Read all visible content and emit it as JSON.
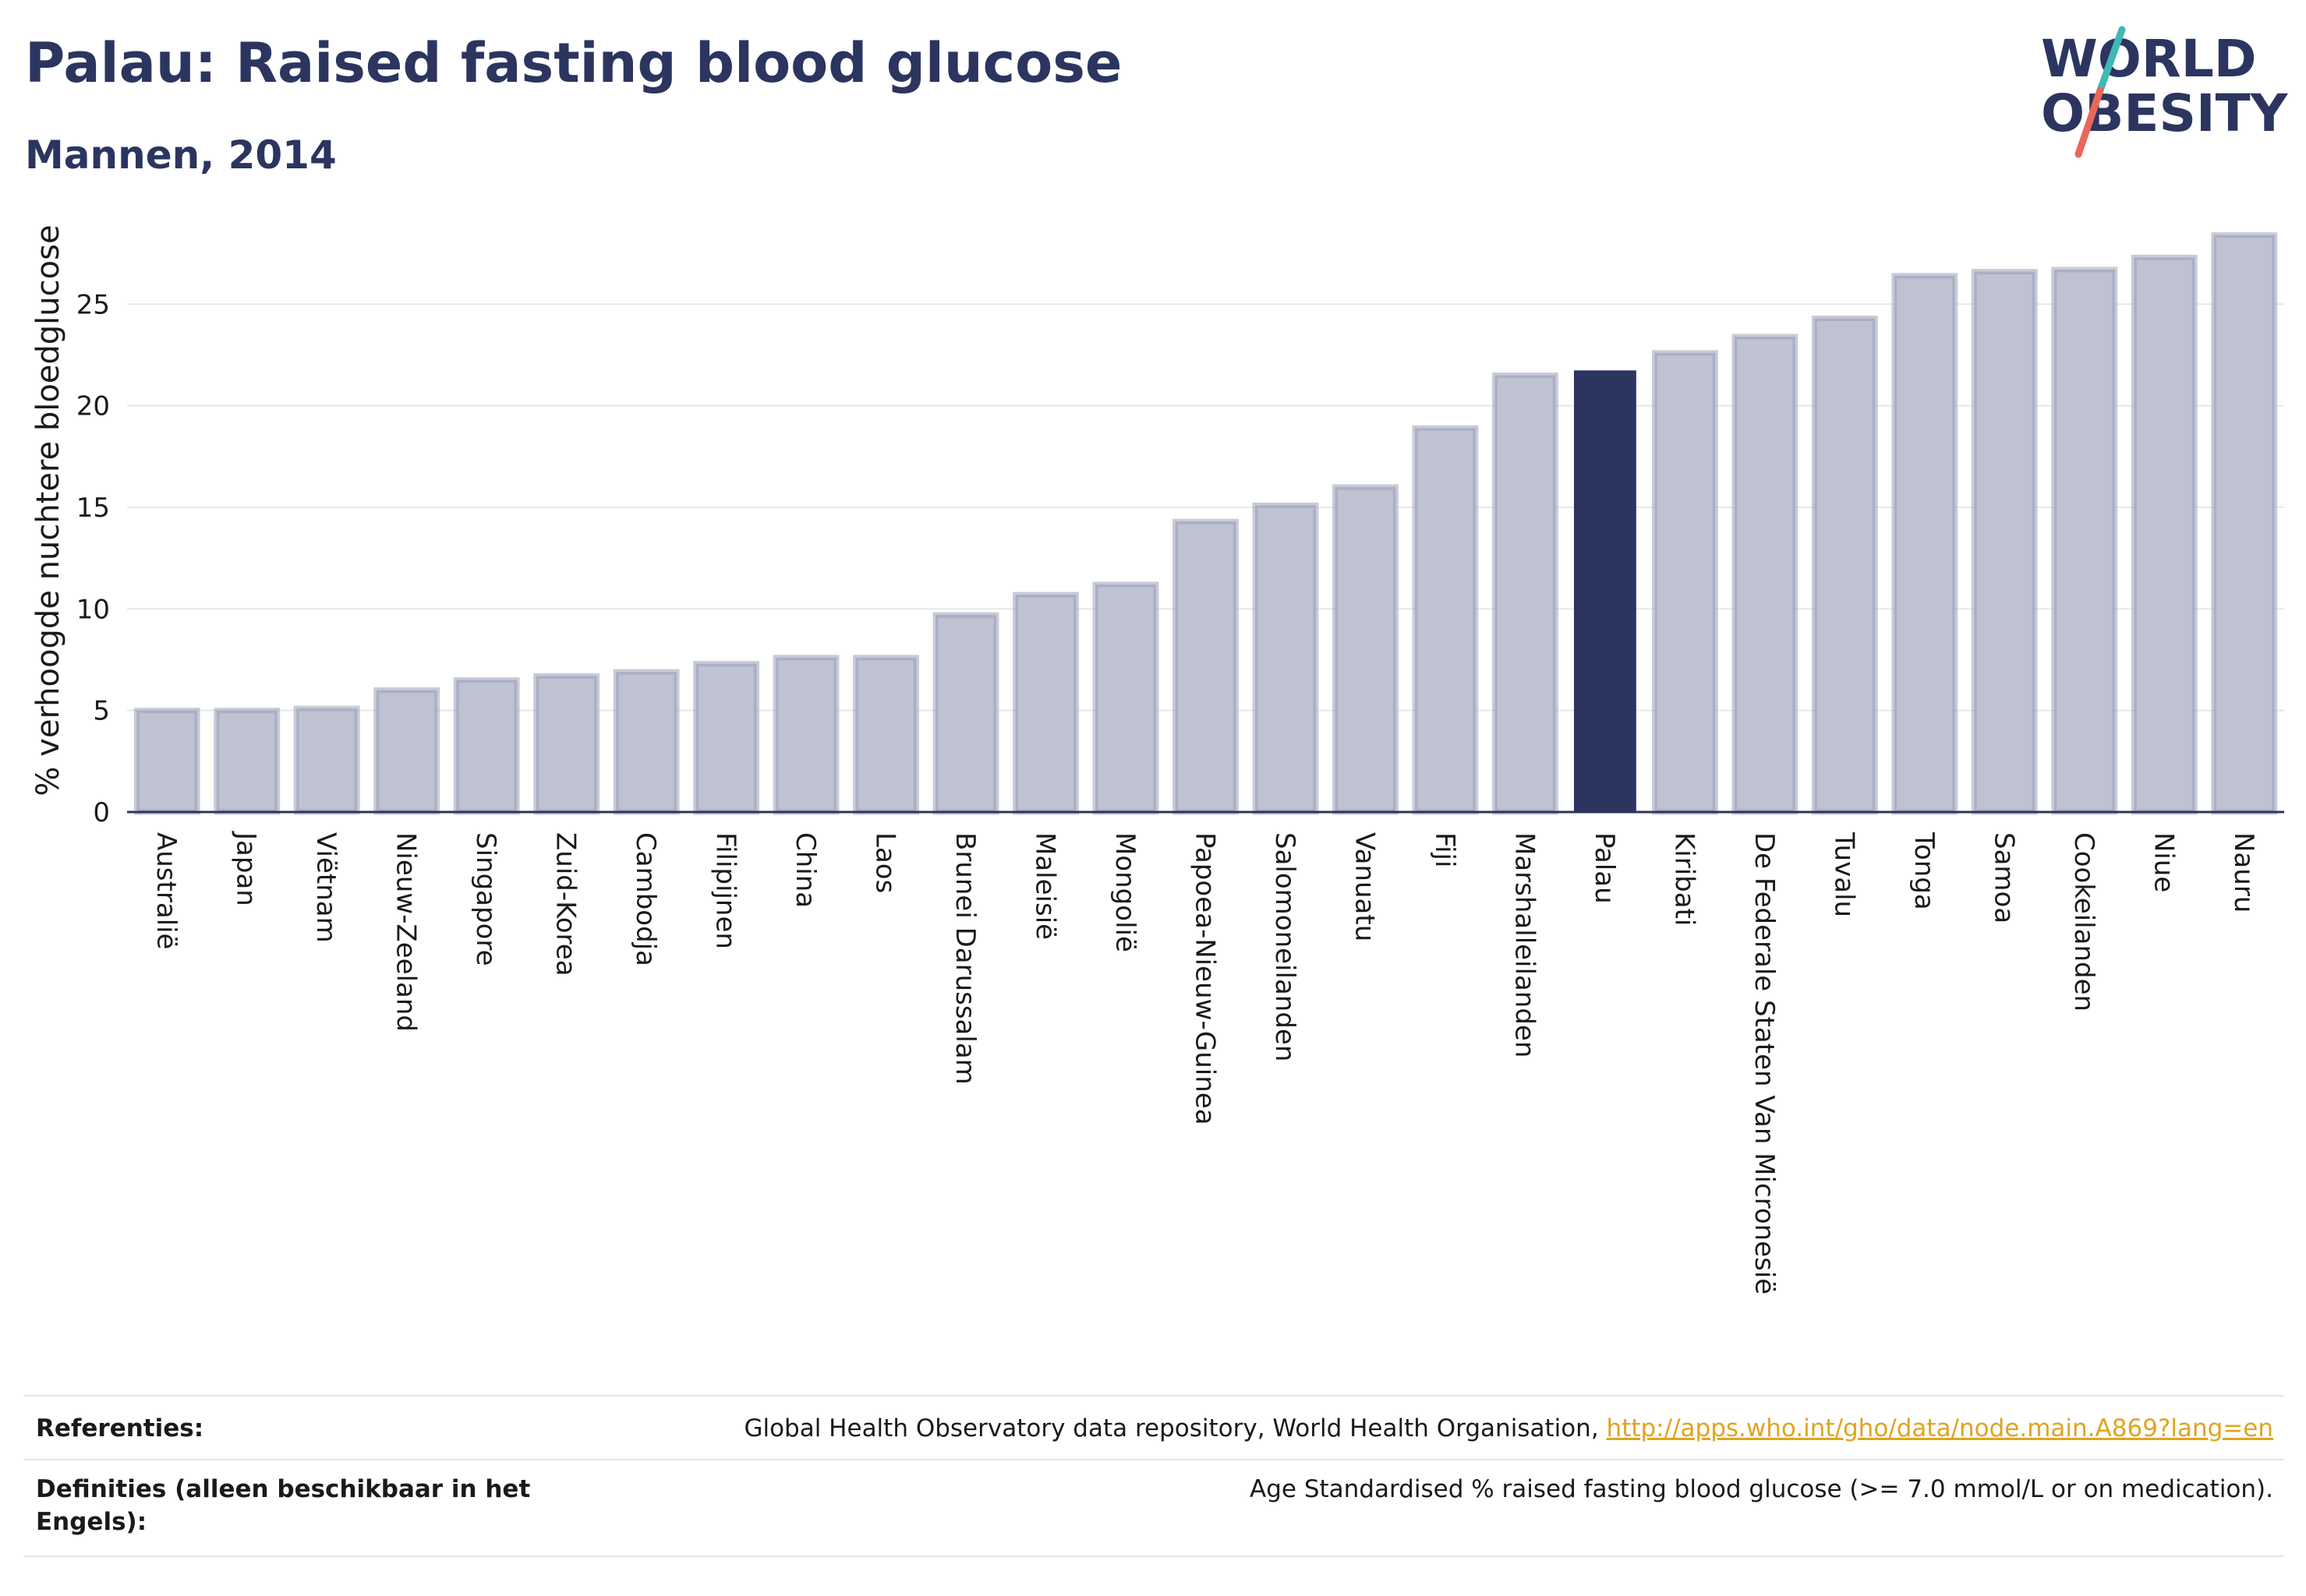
{
  "header": {
    "title": "Palau: Raised fasting blood glucose",
    "subtitle": "Mannen, 2014"
  },
  "logo": {
    "line1": "WORLD",
    "line2": "OBESITY",
    "colors": {
      "text": "#2b3560",
      "slash_top": "#3fb8b8",
      "slash_bottom": "#e8685a"
    }
  },
  "chart_data": {
    "type": "bar",
    "ylabel": "% verhoogde nuchtere bloedglucose",
    "xlabel": "",
    "ylim": [
      0,
      29
    ],
    "yticks": [
      0,
      5,
      10,
      15,
      20,
      25
    ],
    "grid": true,
    "highlight": "Palau",
    "colors": {
      "bar": "#bfc2d0",
      "bar_edge": "#9aa0b8",
      "highlight": "#2b3560",
      "grid": "#e8e8ec",
      "axis": "#2b3560"
    },
    "categories": [
      "Australië",
      "Japan",
      "Viëtnam",
      "Nieuw-Zeeland",
      "Singapore",
      "Zuid-Korea",
      "Cambodja",
      "Filipijnen",
      "China",
      "Laos",
      "Brunei Darussalam",
      "Maleisië",
      "Mongolië",
      "Papoea-Nieuw-Guinea",
      "Salomoneilanden",
      "Vanuatu",
      "Fiji",
      "Marshalleilanden",
      "Palau",
      "Kiribati",
      "De Federale Staten Van Micronesië",
      "Tuvalu",
      "Tonga",
      "Samoa",
      "Cookeilanden",
      "Niue",
      "Nauru"
    ],
    "values": [
      5.0,
      5.0,
      5.1,
      6.0,
      6.5,
      6.7,
      6.9,
      7.3,
      7.6,
      7.6,
      9.7,
      10.7,
      11.2,
      14.3,
      15.1,
      16.0,
      18.9,
      21.5,
      21.7,
      22.6,
      23.4,
      24.3,
      26.4,
      26.6,
      26.7,
      27.3,
      28.4
    ]
  },
  "footer": {
    "references_label": "Referenties:",
    "references_text": "Global Health Observatory data repository, World Health Organisation, ",
    "references_link": "http://apps.who.int/gho/data/node.main.A869?lang=en",
    "definitions_label": "Definities (alleen beschikbaar in het Engels):",
    "definitions_text": "Age Standardised % raised fasting blood glucose (>= 7.0 mmol/L or on medication)."
  }
}
